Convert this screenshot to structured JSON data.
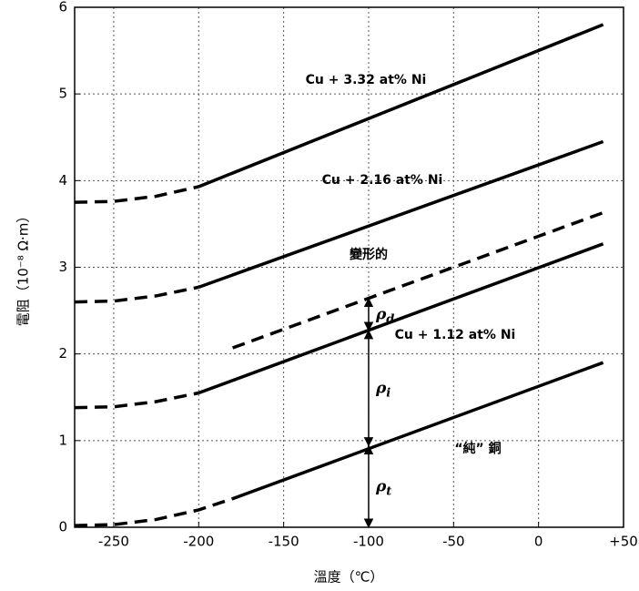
{
  "chart_data": {
    "type": "line",
    "xlabel": "溫度（℃）",
    "ylabel": "電阻（10⁻⁸ Ω·m）",
    "xlim": [
      -273,
      50
    ],
    "ylim": [
      0,
      6
    ],
    "xticks": [
      -250,
      -200,
      -150,
      -100,
      -50,
      0,
      {
        "value": 50,
        "label": "+50"
      }
    ],
    "yticks": [
      0,
      1,
      2,
      3,
      4,
      5,
      6
    ],
    "grid": true,
    "color": "#000000",
    "series": [
      {
        "name": "Cu + 3.32 at% Ni",
        "dashed": {
          "x": [
            -273,
            -250,
            -225,
            -200
          ],
          "values": [
            3.75,
            3.76,
            3.82,
            3.93
          ]
        },
        "solid": {
          "x": [
            -200,
            38
          ],
          "values": [
            3.93,
            5.8
          ]
        }
      },
      {
        "name": "Cu + 2.16 at% Ni",
        "dashed": {
          "x": [
            -273,
            -250,
            -225,
            -200
          ],
          "values": [
            2.6,
            2.61,
            2.67,
            2.77
          ]
        },
        "solid": {
          "x": [
            -200,
            38
          ],
          "values": [
            2.77,
            4.45
          ]
        }
      },
      {
        "name": "變形的",
        "dashed": {
          "x": [
            -180,
            38
          ],
          "values": [
            2.07,
            3.63
          ]
        }
      },
      {
        "name": "Cu + 1.12 at% Ni",
        "dashed": {
          "x": [
            -273,
            -250,
            -225,
            -200
          ],
          "values": [
            1.38,
            1.39,
            1.45,
            1.55
          ]
        },
        "solid": {
          "x": [
            -200,
            38
          ],
          "values": [
            1.55,
            3.27
          ]
        }
      },
      {
        "name": "“純” 銅",
        "dashed": {
          "x": [
            -273,
            -250,
            -225,
            -200,
            -180
          ],
          "values": [
            0.02,
            0.03,
            0.09,
            0.2,
            0.33
          ]
        },
        "solid": {
          "x": [
            -180,
            38
          ],
          "values": [
            0.33,
            1.9
          ]
        }
      }
    ],
    "annotations": [
      {
        "text": "ρ",
        "sub": "d",
        "x": -100,
        "range": [
          2.27,
          2.64
        ]
      },
      {
        "text": "ρ",
        "sub": "i",
        "x": -100,
        "range": [
          0.94,
          2.27
        ]
      },
      {
        "text": "ρ",
        "sub": "t",
        "x": -100,
        "range": [
          0,
          0.94
        ]
      }
    ]
  }
}
